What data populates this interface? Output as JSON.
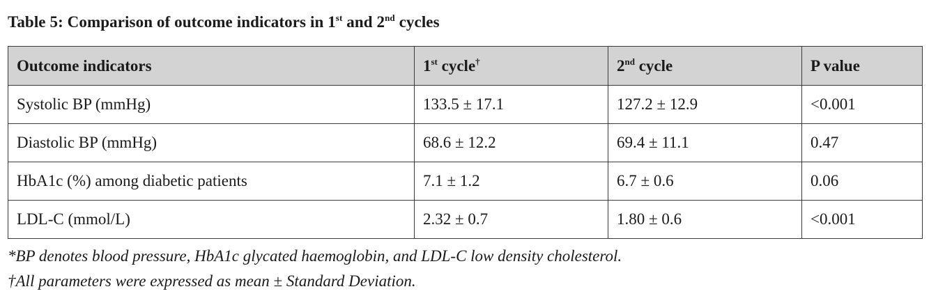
{
  "caption": {
    "prefix": "Table 5:  Comparison of outcome indicators in 1",
    "sup1": "st",
    "middle": " and 2",
    "sup2": "nd",
    "suffix": " cycles"
  },
  "table": {
    "headers": {
      "indicator": "Outcome indicators",
      "cycle1_base": "1",
      "cycle1_sup": "st",
      "cycle1_word": " cycle",
      "cycle1_mark": "†",
      "cycle2_base": "2",
      "cycle2_sup": "nd",
      "cycle2_word": " cycle",
      "pvalue": "P value"
    },
    "rows": [
      [
        "Systolic BP (mmHg)",
        "133.5 ± 17.1",
        "127.2 ± 12.9",
        "<0.001"
      ],
      [
        "Diastolic BP (mmHg)",
        "68.6 ± 12.2",
        "69.4 ± 11.1",
        "0.47"
      ],
      [
        "HbA1c (%) among diabetic patients",
        "7.1 ± 1.2",
        "6.7 ± 0.6",
        "0.06"
      ],
      [
        "LDL-C (mmol/L)",
        "2.32 ± 0.7",
        "1.80 ± 0.6",
        "<0.001"
      ]
    ]
  },
  "footnotes": {
    "note1": "*BP denotes blood pressure, HbA1c glycated haemoglobin, and LDL-C low density cholesterol.",
    "note2": "†All parameters were expressed as mean ± Standard Deviation."
  },
  "colors": {
    "header_bg": "#d3d3d3",
    "border": "#3a3a3a",
    "text": "#1a1a1a"
  }
}
